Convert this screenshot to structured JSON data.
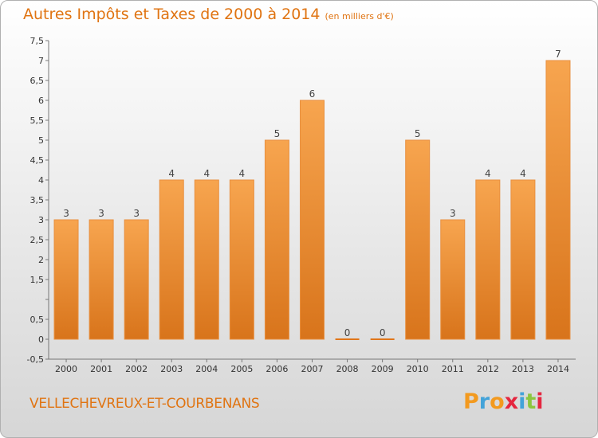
{
  "header": {
    "title": "Autres Impôts et Taxes de 2000 à 2014",
    "unit": "(en milliers d'€)"
  },
  "footer": {
    "commune": "VELLECHEVREUX-ET-COURBENANS",
    "logo": {
      "letters": [
        "P",
        "r",
        "o",
        "x",
        "i",
        "t",
        "i"
      ],
      "colors": [
        "#f39a1f",
        "#43a3d9",
        "#f39a1f",
        "#e5263f",
        "#43a3d9",
        "#8cc63f",
        "#e5263f"
      ]
    }
  },
  "colors": {
    "bar_light": "#f7a54f",
    "bar_dark": "#d8741b",
    "bar_zero": "#e0761a",
    "accent": "#e07412"
  },
  "chart_data": {
    "type": "bar",
    "categories": [
      "2000",
      "2001",
      "2002",
      "2003",
      "2004",
      "2005",
      "2006",
      "2007",
      "2008",
      "2009",
      "2010",
      "2011",
      "2012",
      "2013",
      "2014"
    ],
    "values": [
      3,
      3,
      3,
      4,
      4,
      4,
      5,
      6,
      0,
      0,
      5,
      3,
      4,
      4,
      7
    ],
    "data_labels": [
      "3",
      "3",
      "3",
      "4",
      "4",
      "4",
      "5",
      "6",
      "0",
      "0",
      "5",
      "3",
      "4",
      "4",
      "7"
    ],
    "ylim": [
      -0.5,
      7.5
    ],
    "yticks": [
      -0.5,
      0,
      0.5,
      1,
      1.5,
      2,
      2.5,
      3,
      3.5,
      4,
      4.5,
      5,
      5.5,
      6,
      6.5,
      7,
      7.5
    ],
    "ytick_labels": [
      "-0,5",
      "0",
      "0,5",
      "",
      "1,5",
      "2",
      "2,5",
      "3",
      "3,5",
      "4",
      "4,5",
      "5",
      "5,5",
      "6",
      "6,5",
      "7",
      "7,5"
    ],
    "grid": false
  }
}
